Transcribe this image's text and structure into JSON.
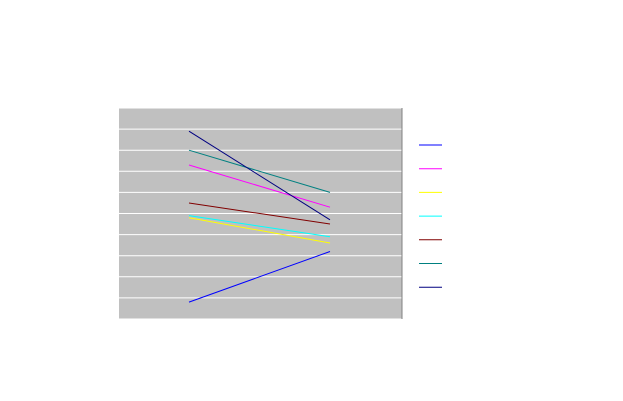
{
  "chart_data": {
    "type": "line",
    "title": "",
    "xlabel": "",
    "ylabel": "",
    "categories": [
      "",
      ""
    ],
    "ylim": [
      0,
      10
    ],
    "grid": true,
    "legend_position": "right",
    "plot_background": "#c0c0c0",
    "series": [
      {
        "color": "#0000ff",
        "values": [
          0.8,
          3.2
        ]
      },
      {
        "color": "#ff00ff",
        "values": [
          7.3,
          5.3
        ]
      },
      {
        "color": "#ffff00",
        "values": [
          4.8,
          3.6
        ]
      },
      {
        "color": "#00ffff",
        "values": [
          4.9,
          3.9
        ]
      },
      {
        "color": "#800000",
        "values": [
          5.5,
          4.5
        ]
      },
      {
        "color": "#008080",
        "values": [
          8.0,
          6.0
        ]
      },
      {
        "color": "#000080",
        "values": [
          8.9,
          4.7
        ]
      }
    ]
  }
}
